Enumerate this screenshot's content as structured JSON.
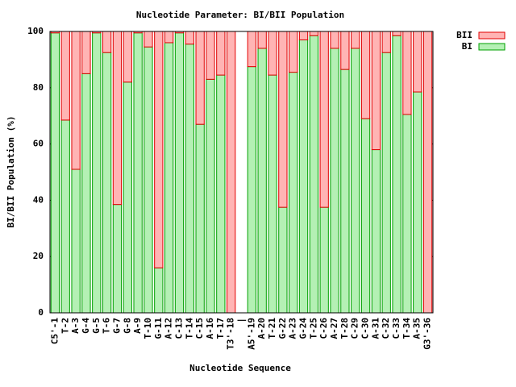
{
  "chart_data": {
    "type": "stacked_bar",
    "title": "Nucleotide Parameter: BI/BII Population",
    "x_label": "Nucleotide Sequence",
    "y_label": "BI/BII Population (%)",
    "categories": [
      "C5'-1",
      "T-2",
      "A-3",
      "G-4",
      "G-5",
      "T-6",
      "G-7",
      "G-8",
      "A-9",
      "T-10",
      "G-11",
      "A-12",
      "C-13",
      "T-14",
      "C-15",
      "A-16",
      "T-17",
      "T3'-18",
      "|",
      "A5'-19",
      "A-20",
      "T-21",
      "G-22",
      "A-23",
      "G-24",
      "T-25",
      "C-26",
      "A-27",
      "T-28",
      "C-29",
      "C-30",
      "A-31",
      "C-32",
      "C-33",
      "T-34",
      "A-35",
      "G3'-36"
    ],
    "series": [
      {
        "name": "BII",
        "color": "#ffb4b4",
        "stroke": "#e00000",
        "values": [
          0.5,
          31.5,
          49,
          15,
          0.5,
          7.5,
          61.5,
          18,
          0.5,
          5.5,
          84,
          4,
          0.5,
          4.5,
          33,
          17,
          15.5,
          100,
          null,
          12.5,
          6,
          15.5,
          62.5,
          14.5,
          3,
          1.5,
          62.5,
          6,
          13.5,
          6,
          31,
          42,
          7.5,
          1.5,
          29.5,
          21.5,
          100
        ]
      },
      {
        "name": "BI",
        "color": "#b4f0b4",
        "stroke": "#00a000",
        "values": [
          99.5,
          68.5,
          51,
          85,
          99.5,
          92.5,
          38.5,
          82,
          99.5,
          94.5,
          16,
          96,
          99.5,
          95.5,
          67,
          83,
          84.5,
          0,
          null,
          87.5,
          94,
          84.5,
          37.5,
          85.5,
          97,
          98.5,
          37.5,
          94,
          86.5,
          94,
          69,
          58,
          92.5,
          98.5,
          70.5,
          78.5,
          0
        ]
      }
    ],
    "ylim": [
      0,
      100
    ],
    "yticks": [
      0,
      20,
      40,
      60,
      80,
      100
    ],
    "legend": "outside-top-right"
  }
}
